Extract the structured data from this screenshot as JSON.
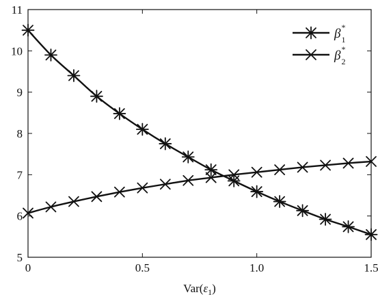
{
  "chart_data": {
    "type": "line",
    "title": "",
    "xlabel_prefix": "Var(",
    "xlabel_symbol": "ε",
    "xlabel_subscript": "1",
    "xlabel_suffix": ")",
    "xlim": [
      0,
      1.5
    ],
    "ylim": [
      5,
      11
    ],
    "xticks": [
      0,
      0.5,
      1.0,
      1.5
    ],
    "xtick_labels": [
      "0",
      "0.5",
      "1.0",
      "1.5"
    ],
    "yticks": [
      5,
      6,
      7,
      8,
      9,
      10,
      11
    ],
    "ytick_labels": [
      "5",
      "6",
      "7",
      "8",
      "9",
      "10",
      "11"
    ],
    "grid": false,
    "legend_position": "top-right",
    "x": [
      0,
      0.1,
      0.2,
      0.3,
      0.4,
      0.5,
      0.6,
      0.7,
      0.8,
      0.9,
      1.0,
      1.1,
      1.2,
      1.3,
      1.4,
      1.5
    ],
    "series": [
      {
        "name": "β",
        "name_subscript": "1",
        "name_superscript": "*",
        "marker": "asterisk",
        "color": "#111111",
        "values": [
          10.5,
          9.9,
          9.4,
          8.9,
          8.48,
          8.1,
          7.75,
          7.43,
          7.12,
          6.85,
          6.59,
          6.35,
          6.13,
          5.92,
          5.74,
          5.55
        ]
      },
      {
        "name": "β",
        "name_subscript": "2",
        "name_superscript": "*",
        "marker": "x",
        "color": "#111111",
        "values": [
          6.07,
          6.22,
          6.35,
          6.47,
          6.58,
          6.68,
          6.77,
          6.86,
          6.93,
          7.0,
          7.06,
          7.12,
          7.18,
          7.23,
          7.28,
          7.32
        ]
      }
    ]
  }
}
